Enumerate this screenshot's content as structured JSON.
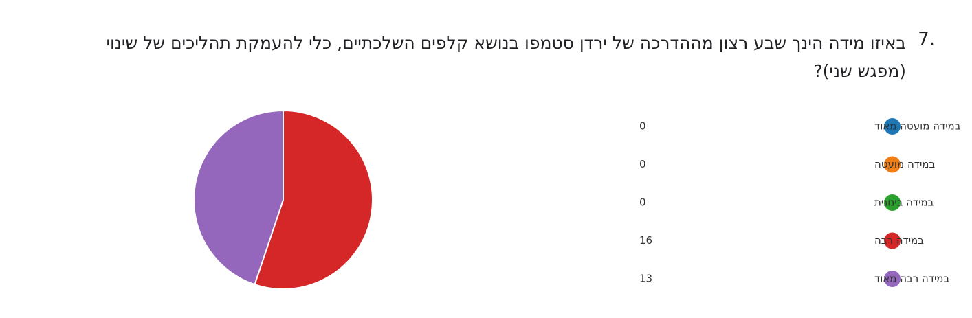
{
  "chart_data": {
    "type": "pie",
    "number": "7.",
    "title": "באיזו מידה הינך שבע רצון מההדרכה של ירדן סטמפו בנושא קלפים השלכתיים, כלי להעמקת תהליכים של שינוי (מפגש שני)?",
    "categories": [
      "במידה מועטה מאוד",
      "במידה מועטה",
      "במידה בינונית",
      "במידה רבה",
      "במידה רבה מאוד"
    ],
    "values": [
      0,
      0,
      0,
      16,
      13
    ],
    "colors": [
      "#1f77b4",
      "#f07f17",
      "#2ca02c",
      "#d62728",
      "#9467bd"
    ]
  }
}
